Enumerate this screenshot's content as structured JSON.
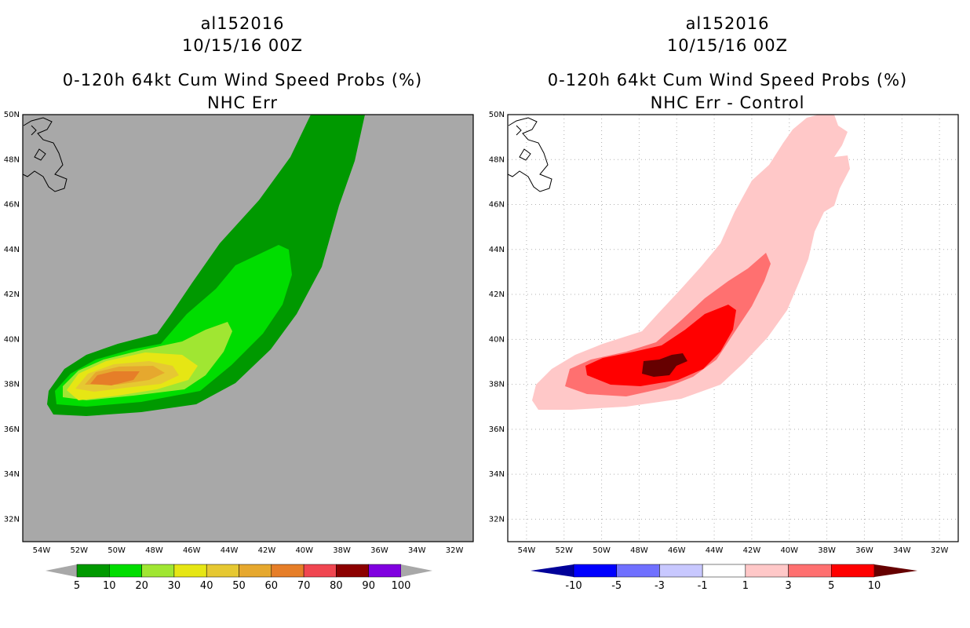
{
  "colors": {
    "left_bg": "#a8a8a8",
    "frame": "#000000",
    "grid": "#b0b0b0"
  },
  "map": {
    "lon_ticks": [
      "54W",
      "52W",
      "50W",
      "48W",
      "46W",
      "44W",
      "42W",
      "40W",
      "38W",
      "36W",
      "34W",
      "32W"
    ],
    "lat_ticks": [
      "32N",
      "34N",
      "36N",
      "38N",
      "40N",
      "42N",
      "44N",
      "46N",
      "48N",
      "50N"
    ]
  },
  "panels": [
    {
      "storm_id": "al152016",
      "date": "10/15/16 00Z",
      "product": "0-120h 64kt Cum Wind Speed Probs (%)",
      "subtitle": "NHC Err",
      "colorbar": {
        "labels": [
          "5",
          "10",
          "20",
          "30",
          "40",
          "50",
          "60",
          "70",
          "80",
          "90",
          "100"
        ],
        "colors": [
          "#009900",
          "#00dd00",
          "#a0e632",
          "#e6e614",
          "#e6c832",
          "#e6a82e",
          "#e67e28",
          "#f04650",
          "#8c0000",
          "#8000e0"
        ]
      }
    },
    {
      "storm_id": "al152016",
      "date": "10/15/16 00Z",
      "product": "0-120h 64kt Cum Wind Speed Probs (%)",
      "subtitle": "NHC Err - Control",
      "colorbar": {
        "labels": [
          "-10",
          "-5",
          "-3",
          "-1",
          "1",
          "3",
          "5",
          "10"
        ],
        "colors": [
          "#0000ff",
          "#7070ff",
          "#c8c8ff",
          "#ffffff",
          "#ffc8c8",
          "#ff7070",
          "#ff0000"
        ],
        "low_arrow": "#000099",
        "high_arrow": "#660000"
      }
    }
  ]
}
